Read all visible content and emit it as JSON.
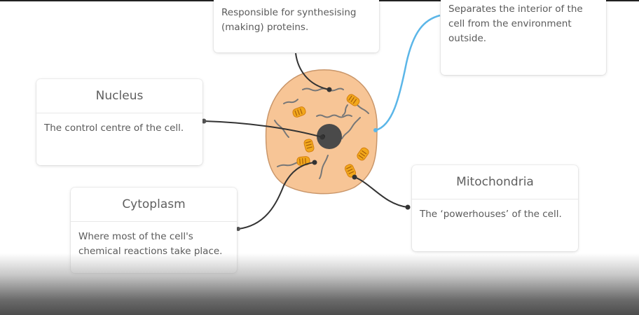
{
  "cards": {
    "ribosome": {
      "title": "",
      "text": "Responsible for synthesising (making) proteins."
    },
    "membrane": {
      "title": "",
      "text": "Separates the interior of the cell from the environment outside."
    },
    "nucleus": {
      "title": "Nucleus",
      "text": "The control centre of the cell."
    },
    "cytoplasm": {
      "title": "Cytoplasm",
      "text": "Where most of the cell's chemical reactions take place."
    },
    "mitochondria": {
      "title": "Mitochondria",
      "text": "The ‘powerhouses’ of the cell."
    }
  },
  "colors": {
    "cell_fill": "#f7c596",
    "cell_outline": "#c9966a",
    "nucleus": "#4a4a4a",
    "mitochondria": "#f2a81c",
    "membrane_pointer": "#5bb6e8",
    "pointer": "#333333"
  }
}
